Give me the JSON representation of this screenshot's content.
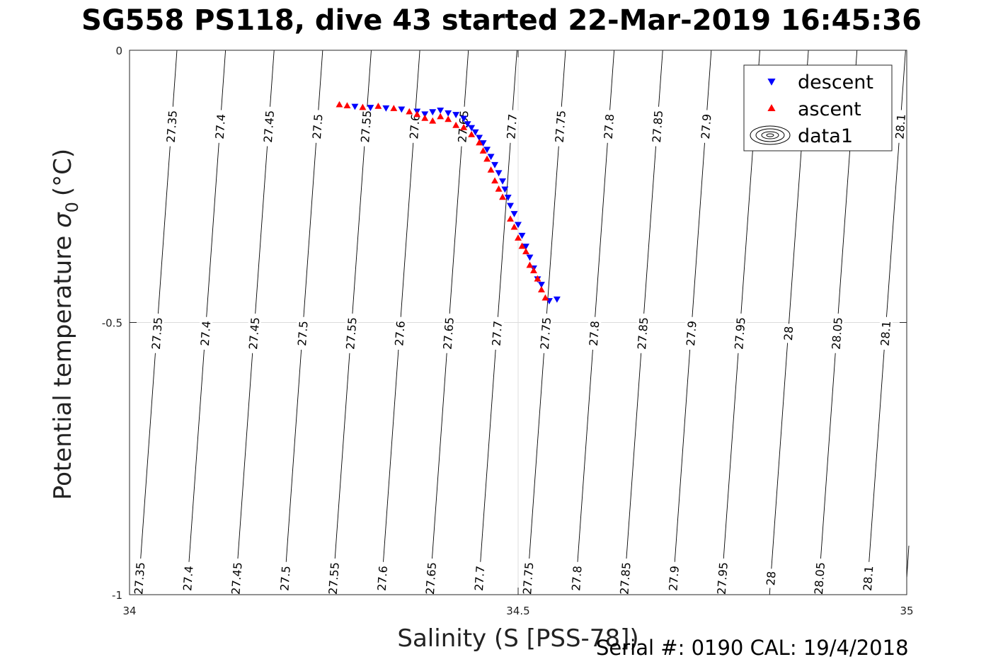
{
  "chart_data": {
    "type": "scatter",
    "title": "SG558 PS118, dive 43 started 22-Mar-2019 16:45:36",
    "xlabel": "Salinity (S [PSS-78])",
    "ylabel": "Potential temperature",
    "ylabel_sym": "σ",
    "ylabel_sub": "0",
    "ylabel_unit": "(°C)",
    "xlim": [
      34,
      35
    ],
    "ylim": [
      -1,
      0
    ],
    "xticks": [
      34,
      34.5,
      35
    ],
    "yticks": [
      0,
      -0.5,
      -1
    ],
    "grid": true,
    "legend_position": "top-right",
    "isopycnals": {
      "levels": [
        27.35,
        27.4,
        27.45,
        27.5,
        27.55,
        27.6,
        27.65,
        27.7,
        27.75,
        27.8,
        27.85,
        27.9,
        27.95,
        28,
        28.05,
        28.1
      ],
      "label_rows": [
        {
          "y": -0.97,
          "labels": [
            "27.35",
            "27.4",
            "27.45",
            "27.5",
            "27.55",
            "27.6",
            "27.65",
            "27.7",
            "27.75",
            "27.8",
            "27.85",
            "27.9",
            "27.95",
            "28",
            "28.05",
            "28.1"
          ]
        },
        {
          "y": -0.52,
          "labels": [
            "27.35",
            "27.4",
            "27.45",
            "27.5",
            "27.55",
            "27.6",
            "27.65",
            "27.7",
            "27.75",
            "27.8",
            "27.85",
            "27.9",
            "27.95",
            "28",
            "28.05",
            "28.1"
          ]
        },
        {
          "y": -0.14,
          "labels": [
            "27.35",
            "27.4",
            "27.45",
            "27.5",
            "27.55",
            "27.6",
            "27.65",
            "27.7",
            "27.75",
            "27.8",
            "27.85",
            "27.9",
            "",
            "",
            "",
            "28.1"
          ]
        }
      ]
    },
    "series": [
      {
        "name": "descent",
        "marker": "triangle-down",
        "color": "#0000ff",
        "points": [
          [
            34.29,
            -0.103
          ],
          [
            34.31,
            -0.105
          ],
          [
            34.33,
            -0.106
          ],
          [
            34.35,
            -0.108
          ],
          [
            34.37,
            -0.112
          ],
          [
            34.38,
            -0.117
          ],
          [
            34.39,
            -0.113
          ],
          [
            34.4,
            -0.11
          ],
          [
            34.41,
            -0.115
          ],
          [
            34.42,
            -0.118
          ],
          [
            34.43,
            -0.125
          ],
          [
            34.435,
            -0.135
          ],
          [
            34.44,
            -0.142
          ],
          [
            34.445,
            -0.15
          ],
          [
            34.45,
            -0.16
          ],
          [
            34.455,
            -0.17
          ],
          [
            34.46,
            -0.182
          ],
          [
            34.465,
            -0.195
          ],
          [
            34.47,
            -0.21
          ],
          [
            34.475,
            -0.225
          ],
          [
            34.48,
            -0.24
          ],
          [
            34.483,
            -0.255
          ],
          [
            34.487,
            -0.27
          ],
          [
            34.49,
            -0.285
          ],
          [
            34.495,
            -0.3
          ],
          [
            34.5,
            -0.32
          ],
          [
            34.505,
            -0.34
          ],
          [
            34.51,
            -0.36
          ],
          [
            34.515,
            -0.38
          ],
          [
            34.52,
            -0.4
          ],
          [
            34.525,
            -0.42
          ],
          [
            34.53,
            -0.43
          ],
          [
            34.54,
            -0.46
          ],
          [
            34.55,
            -0.457
          ]
        ]
      },
      {
        "name": "ascent",
        "marker": "triangle-up",
        "color": "#ff0000",
        "points": [
          [
            34.27,
            -0.1
          ],
          [
            34.28,
            -0.102
          ],
          [
            34.3,
            -0.105
          ],
          [
            34.32,
            -0.103
          ],
          [
            34.34,
            -0.107
          ],
          [
            34.36,
            -0.113
          ],
          [
            34.37,
            -0.118
          ],
          [
            34.38,
            -0.125
          ],
          [
            34.39,
            -0.13
          ],
          [
            34.4,
            -0.122
          ],
          [
            34.41,
            -0.127
          ],
          [
            34.42,
            -0.138
          ],
          [
            34.43,
            -0.142
          ],
          [
            34.44,
            -0.155
          ],
          [
            34.45,
            -0.17
          ],
          [
            34.455,
            -0.185
          ],
          [
            34.46,
            -0.2
          ],
          [
            34.465,
            -0.22
          ],
          [
            34.47,
            -0.24
          ],
          [
            34.475,
            -0.255
          ],
          [
            34.48,
            -0.27
          ],
          [
            34.49,
            -0.31
          ],
          [
            34.495,
            -0.325
          ],
          [
            34.5,
            -0.345
          ],
          [
            34.505,
            -0.36
          ],
          [
            34.51,
            -0.37
          ],
          [
            34.515,
            -0.395
          ],
          [
            34.52,
            -0.405
          ],
          [
            34.525,
            -0.42
          ],
          [
            34.53,
            -0.44
          ],
          [
            34.535,
            -0.455
          ]
        ]
      }
    ],
    "legend": [
      {
        "label": "descent",
        "marker": "triangle-down",
        "color": "#0000ff"
      },
      {
        "label": "ascent",
        "marker": "triangle-up",
        "color": "#ff0000"
      },
      {
        "label": "data1",
        "marker": "contour",
        "color": "#000000"
      }
    ]
  },
  "footer": "Serial #: 0190  CAL: 19/4/2018"
}
